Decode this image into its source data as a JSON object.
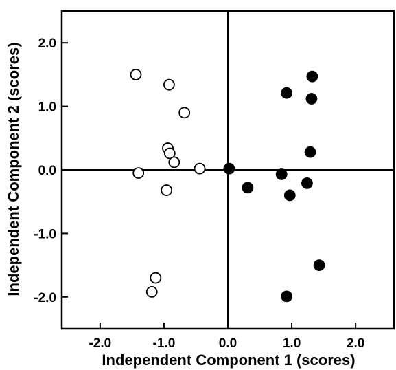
{
  "chart_data": {
    "type": "scatter",
    "title": "",
    "xlabel": "Independent Component 1 (scores)",
    "ylabel": "Independent Component 2 (scores)",
    "xlim": [
      -2.6,
      2.6
    ],
    "ylim": [
      -2.5,
      2.5
    ],
    "xticks": [
      -2.0,
      -1.0,
      0.0,
      1.0,
      2.0
    ],
    "yticks": [
      -2.0,
      -1.0,
      0.0,
      1.0,
      2.0
    ],
    "xtick_labels": [
      "-2.0",
      "-1.0",
      "0.0",
      "1.0",
      "2.0"
    ],
    "ytick_labels": [
      "-2.0",
      "-1.0",
      "0.0",
      "1.0",
      "2.0"
    ],
    "zero_lines": true,
    "grid": false,
    "series": [
      {
        "marker": "open-circle",
        "color": "#000000",
        "fill": "#ffffff",
        "points": [
          {
            "x": -1.44,
            "y": 1.5
          },
          {
            "x": -0.92,
            "y": 1.34
          },
          {
            "x": -0.68,
            "y": 0.9
          },
          {
            "x": -0.94,
            "y": 0.34
          },
          {
            "x": -0.91,
            "y": 0.26
          },
          {
            "x": -0.84,
            "y": 0.12
          },
          {
            "x": -0.44,
            "y": 0.02
          },
          {
            "x": -1.4,
            "y": -0.05
          },
          {
            "x": -0.96,
            "y": -0.32
          },
          {
            "x": -1.13,
            "y": -1.7
          },
          {
            "x": -1.19,
            "y": -1.92
          }
        ]
      },
      {
        "marker": "filled-circle",
        "color": "#000000",
        "fill": "#000000",
        "points": [
          {
            "x": 0.02,
            "y": 0.02
          },
          {
            "x": 0.31,
            "y": -0.28
          },
          {
            "x": 0.84,
            "y": -0.07
          },
          {
            "x": 0.97,
            "y": -0.4
          },
          {
            "x": 0.92,
            "y": 1.21
          },
          {
            "x": 1.32,
            "y": 1.47
          },
          {
            "x": 1.31,
            "y": 1.12
          },
          {
            "x": 1.29,
            "y": 0.28
          },
          {
            "x": 1.24,
            "y": -0.21
          },
          {
            "x": 1.43,
            "y": -1.5
          },
          {
            "x": 0.92,
            "y": -1.99
          }
        ]
      }
    ]
  }
}
